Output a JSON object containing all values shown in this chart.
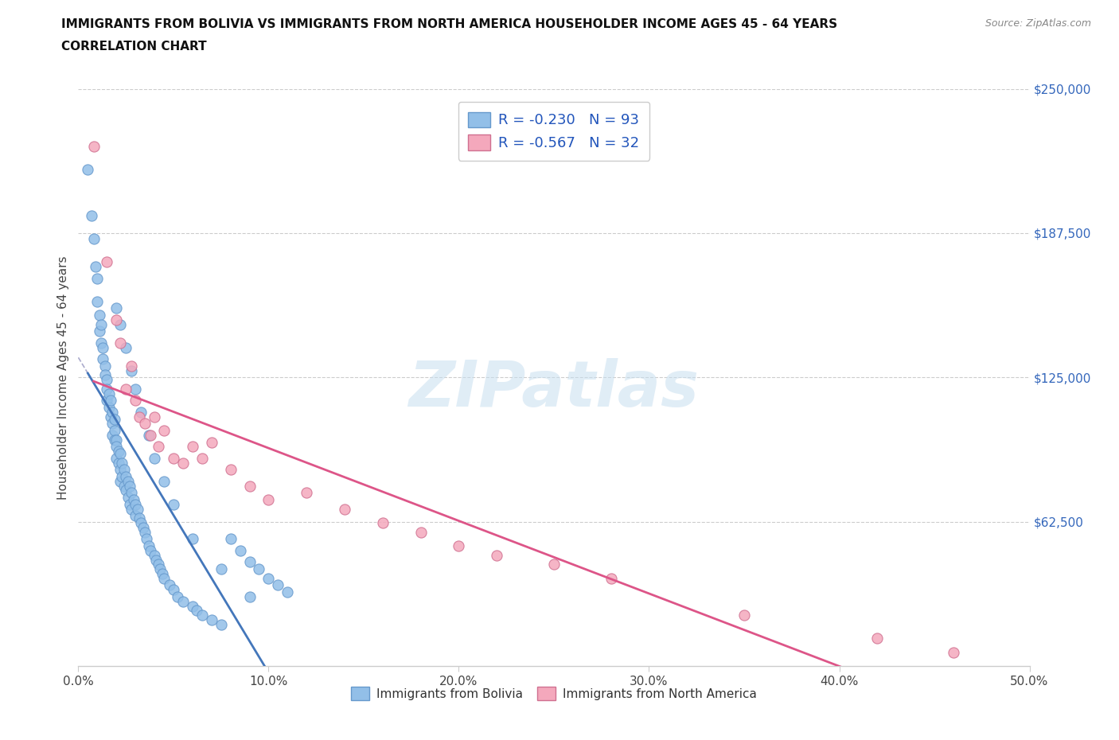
{
  "title_line1": "IMMIGRANTS FROM BOLIVIA VS IMMIGRANTS FROM NORTH AMERICA HOUSEHOLDER INCOME AGES 45 - 64 YEARS",
  "title_line2": "CORRELATION CHART",
  "source_text": "Source: ZipAtlas.com",
  "ylabel": "Householder Income Ages 45 - 64 years",
  "xlim": [
    0.0,
    0.5
  ],
  "ylim": [
    0,
    250000
  ],
  "xtick_labels": [
    "0.0%",
    "10.0%",
    "20.0%",
    "30.0%",
    "40.0%",
    "50.0%"
  ],
  "xtick_vals": [
    0.0,
    0.1,
    0.2,
    0.3,
    0.4,
    0.5
  ],
  "ytick_vals": [
    0,
    62500,
    125000,
    187500,
    250000
  ],
  "ytick_labels": [
    "",
    "$62,500",
    "$125,000",
    "$187,500",
    "$250,000"
  ],
  "bolivia_color": "#92bfe8",
  "bolivia_edge": "#6699cc",
  "north_america_color": "#f4a8bc",
  "north_america_edge": "#d07090",
  "bolivia_R": -0.23,
  "bolivia_N": 93,
  "north_america_R": -0.567,
  "north_america_N": 32,
  "bolivia_line_color": "#4477bb",
  "north_america_line_color": "#dd5588",
  "watermark": "ZIPatlas",
  "bolivia_points_x": [
    0.005,
    0.007,
    0.008,
    0.009,
    0.01,
    0.01,
    0.011,
    0.011,
    0.012,
    0.012,
    0.013,
    0.013,
    0.014,
    0.014,
    0.015,
    0.015,
    0.015,
    0.016,
    0.016,
    0.017,
    0.017,
    0.018,
    0.018,
    0.018,
    0.019,
    0.019,
    0.019,
    0.02,
    0.02,
    0.02,
    0.021,
    0.021,
    0.022,
    0.022,
    0.022,
    0.023,
    0.023,
    0.024,
    0.024,
    0.025,
    0.025,
    0.026,
    0.026,
    0.027,
    0.027,
    0.028,
    0.028,
    0.029,
    0.03,
    0.03,
    0.031,
    0.032,
    0.033,
    0.034,
    0.035,
    0.036,
    0.037,
    0.038,
    0.04,
    0.041,
    0.042,
    0.043,
    0.044,
    0.045,
    0.048,
    0.05,
    0.052,
    0.055,
    0.06,
    0.062,
    0.065,
    0.07,
    0.075,
    0.08,
    0.085,
    0.09,
    0.095,
    0.1,
    0.105,
    0.11,
    0.02,
    0.022,
    0.025,
    0.028,
    0.03,
    0.033,
    0.037,
    0.04,
    0.045,
    0.05,
    0.06,
    0.075,
    0.09
  ],
  "bolivia_points_y": [
    215000,
    195000,
    185000,
    173000,
    168000,
    158000,
    152000,
    145000,
    148000,
    140000,
    138000,
    133000,
    130000,
    126000,
    124000,
    120000,
    115000,
    118000,
    112000,
    115000,
    108000,
    110000,
    105000,
    100000,
    107000,
    102000,
    98000,
    98000,
    95000,
    90000,
    93000,
    88000,
    92000,
    85000,
    80000,
    88000,
    82000,
    85000,
    78000,
    82000,
    76000,
    80000,
    73000,
    78000,
    70000,
    75000,
    68000,
    72000,
    70000,
    65000,
    68000,
    64000,
    62000,
    60000,
    58000,
    55000,
    52000,
    50000,
    48000,
    46000,
    44000,
    42000,
    40000,
    38000,
    35000,
    33000,
    30000,
    28000,
    26000,
    24000,
    22000,
    20000,
    18000,
    55000,
    50000,
    45000,
    42000,
    38000,
    35000,
    32000,
    155000,
    148000,
    138000,
    128000,
    120000,
    110000,
    100000,
    90000,
    80000,
    70000,
    55000,
    42000,
    30000
  ],
  "na_points_x": [
    0.008,
    0.015,
    0.02,
    0.022,
    0.025,
    0.028,
    0.03,
    0.032,
    0.035,
    0.038,
    0.04,
    0.042,
    0.045,
    0.05,
    0.055,
    0.06,
    0.065,
    0.07,
    0.08,
    0.09,
    0.1,
    0.12,
    0.14,
    0.16,
    0.18,
    0.2,
    0.22,
    0.25,
    0.28,
    0.35,
    0.42,
    0.46
  ],
  "na_points_y": [
    225000,
    175000,
    150000,
    140000,
    120000,
    130000,
    115000,
    108000,
    105000,
    100000,
    108000,
    95000,
    102000,
    90000,
    88000,
    95000,
    90000,
    97000,
    85000,
    78000,
    72000,
    75000,
    68000,
    62000,
    58000,
    52000,
    48000,
    44000,
    38000,
    22000,
    12000,
    6000
  ]
}
